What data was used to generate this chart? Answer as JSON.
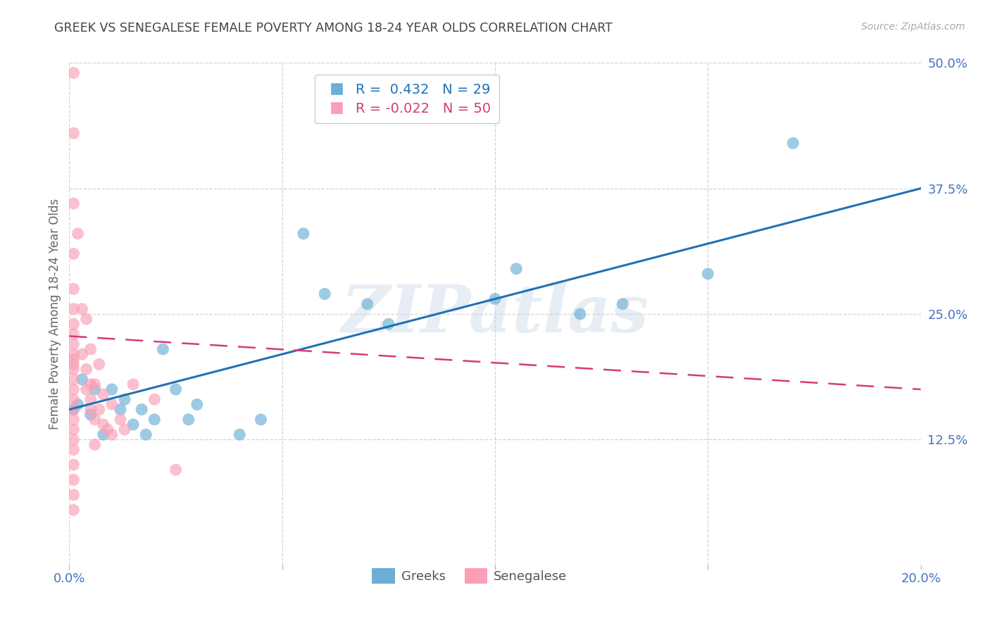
{
  "title": "GREEK VS SENEGALESE FEMALE POVERTY AMONG 18-24 YEAR OLDS CORRELATION CHART",
  "source": "Source: ZipAtlas.com",
  "ylabel": "Female Poverty Among 18-24 Year Olds",
  "xlim": [
    0.0,
    0.2
  ],
  "ylim": [
    0.0,
    0.5
  ],
  "xticks": [
    0.0,
    0.05,
    0.1,
    0.15,
    0.2
  ],
  "yticks": [
    0.0,
    0.125,
    0.25,
    0.375,
    0.5
  ],
  "ytick_labels": [
    "",
    "12.5%",
    "25.0%",
    "37.5%",
    "50.0%"
  ],
  "xtick_labels": [
    "0.0%",
    "",
    "",
    "",
    "20.0%"
  ],
  "legend_entries": [
    {
      "label": "Greeks",
      "R": " 0.432",
      "N": "29",
      "color": "#6baed6"
    },
    {
      "label": "Senegalese",
      "R": "-0.022",
      "N": "50",
      "color": "#fa9fb5"
    }
  ],
  "greek_points": [
    [
      0.001,
      0.155
    ],
    [
      0.002,
      0.16
    ],
    [
      0.003,
      0.185
    ],
    [
      0.005,
      0.15
    ],
    [
      0.006,
      0.175
    ],
    [
      0.008,
      0.13
    ],
    [
      0.01,
      0.175
    ],
    [
      0.012,
      0.155
    ],
    [
      0.013,
      0.165
    ],
    [
      0.015,
      0.14
    ],
    [
      0.017,
      0.155
    ],
    [
      0.018,
      0.13
    ],
    [
      0.02,
      0.145
    ],
    [
      0.022,
      0.215
    ],
    [
      0.025,
      0.175
    ],
    [
      0.028,
      0.145
    ],
    [
      0.03,
      0.16
    ],
    [
      0.04,
      0.13
    ],
    [
      0.045,
      0.145
    ],
    [
      0.055,
      0.33
    ],
    [
      0.06,
      0.27
    ],
    [
      0.07,
      0.26
    ],
    [
      0.075,
      0.24
    ],
    [
      0.1,
      0.265
    ],
    [
      0.105,
      0.295
    ],
    [
      0.12,
      0.25
    ],
    [
      0.13,
      0.26
    ],
    [
      0.15,
      0.29
    ],
    [
      0.17,
      0.42
    ]
  ],
  "senegalese_points": [
    [
      0.001,
      0.49
    ],
    [
      0.001,
      0.43
    ],
    [
      0.001,
      0.36
    ],
    [
      0.001,
      0.31
    ],
    [
      0.001,
      0.275
    ],
    [
      0.001,
      0.255
    ],
    [
      0.001,
      0.24
    ],
    [
      0.001,
      0.23
    ],
    [
      0.001,
      0.22
    ],
    [
      0.001,
      0.21
    ],
    [
      0.001,
      0.205
    ],
    [
      0.001,
      0.2
    ],
    [
      0.001,
      0.195
    ],
    [
      0.001,
      0.185
    ],
    [
      0.001,
      0.175
    ],
    [
      0.001,
      0.165
    ],
    [
      0.001,
      0.155
    ],
    [
      0.001,
      0.145
    ],
    [
      0.001,
      0.135
    ],
    [
      0.001,
      0.125
    ],
    [
      0.001,
      0.115
    ],
    [
      0.001,
      0.1
    ],
    [
      0.001,
      0.085
    ],
    [
      0.001,
      0.07
    ],
    [
      0.001,
      0.055
    ],
    [
      0.002,
      0.33
    ],
    [
      0.003,
      0.255
    ],
    [
      0.003,
      0.21
    ],
    [
      0.004,
      0.245
    ],
    [
      0.004,
      0.195
    ],
    [
      0.004,
      0.175
    ],
    [
      0.005,
      0.215
    ],
    [
      0.005,
      0.18
    ],
    [
      0.005,
      0.165
    ],
    [
      0.005,
      0.155
    ],
    [
      0.006,
      0.18
    ],
    [
      0.006,
      0.145
    ],
    [
      0.006,
      0.12
    ],
    [
      0.007,
      0.2
    ],
    [
      0.007,
      0.155
    ],
    [
      0.008,
      0.17
    ],
    [
      0.008,
      0.14
    ],
    [
      0.009,
      0.135
    ],
    [
      0.01,
      0.16
    ],
    [
      0.01,
      0.13
    ],
    [
      0.012,
      0.145
    ],
    [
      0.013,
      0.135
    ],
    [
      0.015,
      0.18
    ],
    [
      0.02,
      0.165
    ],
    [
      0.025,
      0.095
    ]
  ],
  "greek_color": "#6baed6",
  "senegalese_color": "#fa9fb5",
  "greek_line_color": "#2171b5",
  "senegalese_line_color": "#d63a7a",
  "background_color": "#ffffff",
  "watermark": "ZIPatlas",
  "title_color": "#444444",
  "tick_color": "#4472c4",
  "grid_color": "#d0d0d0"
}
